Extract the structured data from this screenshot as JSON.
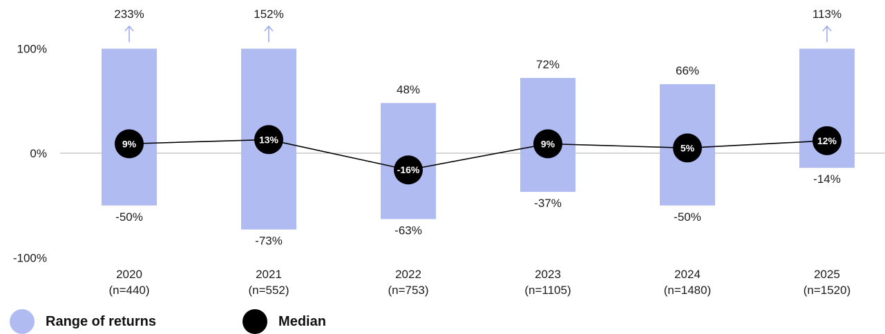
{
  "chart_data": {
    "type": "bar",
    "categories": [
      "2020",
      "2021",
      "2022",
      "2023",
      "2024",
      "2025"
    ],
    "sample_sizes": [
      "(n=440)",
      "(n=552)",
      "(n=753)",
      "(n=1105)",
      "(n=1480)",
      "(n=1520)"
    ],
    "series": [
      {
        "name": "Range of returns",
        "kind": "range",
        "low": [
          -50,
          -73,
          -63,
          -37,
          -50,
          -14
        ],
        "high": [
          233,
          152,
          48,
          72,
          66,
          113
        ]
      },
      {
        "name": "Median",
        "kind": "line",
        "values": [
          9,
          13,
          -16,
          9,
          5,
          12
        ]
      }
    ],
    "high_labels": [
      "233%",
      "152%",
      "48%",
      "72%",
      "66%",
      "113%"
    ],
    "low_labels": [
      "-50%",
      "-73%",
      "-63%",
      "-37%",
      "-50%",
      "-14%"
    ],
    "median_labels": [
      "9%",
      "13%",
      "-16%",
      "9%",
      "5%",
      "12%"
    ],
    "clipped_above": [
      true,
      true,
      false,
      false,
      false,
      true
    ],
    "ylim": [
      -100,
      100
    ],
    "y_ticks": [
      100,
      0,
      -100
    ],
    "y_tick_labels": [
      "100%",
      "0%",
      "-100%"
    ],
    "grid": false,
    "legend_position": "bottom-left",
    "colors": {
      "range": "#b0bbf1",
      "median": "#000000",
      "arrow": "#9fabee",
      "zero_line": "#bdbdbd"
    }
  },
  "legend": [
    {
      "label": "Range of returns",
      "color": "#b0bbf1"
    },
    {
      "label": "Median",
      "color": "#000000"
    }
  ]
}
